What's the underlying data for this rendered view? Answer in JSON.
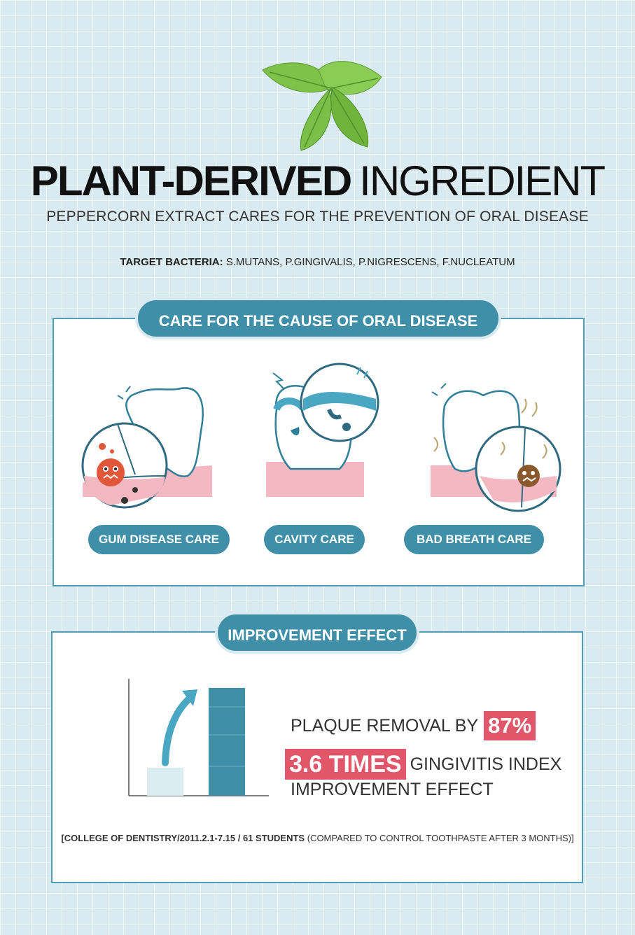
{
  "title": {
    "bold": "PLANT-DERIVED",
    "light": "INGREDIENT"
  },
  "subtitle": "PEPPERCORN EXTRACT CARES FOR THE PREVENTION OF ORAL DISEASE",
  "bacteria": {
    "label": "TARGET BACTERIA:",
    "value": "S.MUTANS, P.GINGIVALIS, P.NIGRESCENS, F.NUCLEATUM"
  },
  "care_section": {
    "heading": "CARE FOR THE CAUSE OF ORAL DISEASE",
    "items": [
      {
        "label": "GUM DISEASE CARE",
        "icon": "gum-disease-tooth-icon"
      },
      {
        "label": "CAVITY CARE",
        "icon": "cavity-tooth-icon"
      },
      {
        "label": "BAD BREATH CARE",
        "icon": "bad-breath-tooth-icon"
      }
    ]
  },
  "improvement": {
    "heading": "IMPROVEMENT EFFECT",
    "plaque_text": "PLAQUE REMOVAL BY",
    "plaque_pct": "87%",
    "times": "3.6 TIMES",
    "gingivitis_text": "GINGIVITIS INDEX",
    "effect_text": "IMPROVEMENT EFFECT"
  },
  "footnote": {
    "bold": "[COLLEGE OF DENTISTRY/2011.2.1-7.15 / 61 STUDENTS",
    "light": " (COMPARED TO CONTROL TOOTHPASTE AFTER 3 MONTHS)]"
  },
  "colors": {
    "accent": "#3f8fa9",
    "highlight": "#e2566a",
    "gum": "#f4b8c2",
    "background": "#d9ebf0"
  }
}
